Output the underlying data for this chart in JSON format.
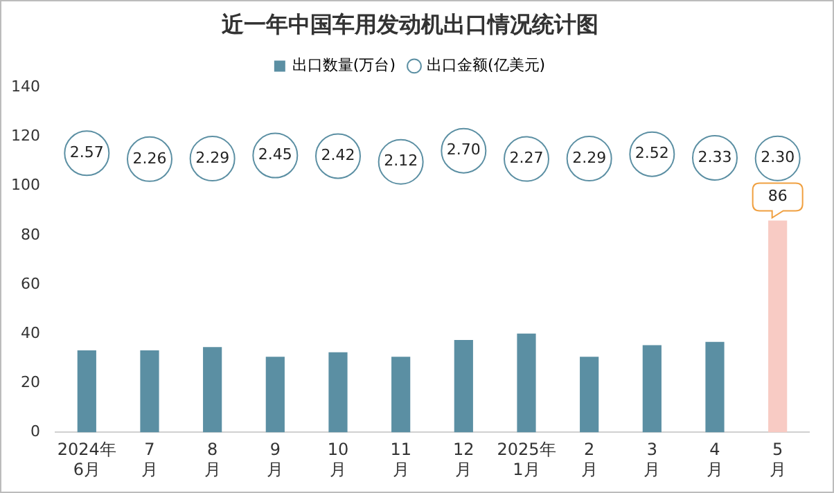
{
  "chart_data": {
    "type": "bar",
    "title": "近一年中国车用发动机出口情况统计图",
    "categories": [
      "2024年6月",
      "7月",
      "8月",
      "9月",
      "10月",
      "11月",
      "12月",
      "2025年1月",
      "2月",
      "3月",
      "4月",
      "5月"
    ],
    "series": [
      {
        "name": "出口数量(万台)",
        "color": "#5b8fa3",
        "colors": [
          "#5b8fa3",
          "#5b8fa3",
          "#5b8fa3",
          "#5b8fa3",
          "#5b8fa3",
          "#5b8fa3",
          "#5b8fa3",
          "#5b8fa3",
          "#5b8fa3",
          "#5b8fa3",
          "#5b8fa3",
          "#f8cbc4"
        ],
        "values": [
          33.3,
          33.3,
          34.6,
          30.7,
          32.5,
          30.7,
          37.5,
          40.1,
          30.7,
          35.4,
          36.7,
          86
        ],
        "value_labels": [
          null,
          null,
          null,
          null,
          null,
          null,
          null,
          null,
          null,
          null,
          null,
          "86"
        ]
      },
      {
        "name": "出口金额(亿美元)",
        "type": "scatter",
        "axis": "y2",
        "color": "#5b8fa3",
        "values": [
          2.57,
          2.26,
          2.29,
          2.45,
          2.42,
          2.12,
          2.7,
          2.27,
          2.29,
          2.52,
          2.33,
          2.3
        ],
        "value_labels": [
          "2.57",
          "2.26",
          "2.29",
          "2.45",
          "2.42",
          "2.12",
          "2.70",
          "2.27",
          "2.29",
          "2.52",
          "2.33",
          "2.30"
        ]
      }
    ],
    "ylim": [
      0,
      140
    ],
    "yticks": [
      0,
      20,
      40,
      60,
      80,
      100,
      120,
      140
    ],
    "grid": false,
    "legend": "top",
    "marker": "circle"
  }
}
